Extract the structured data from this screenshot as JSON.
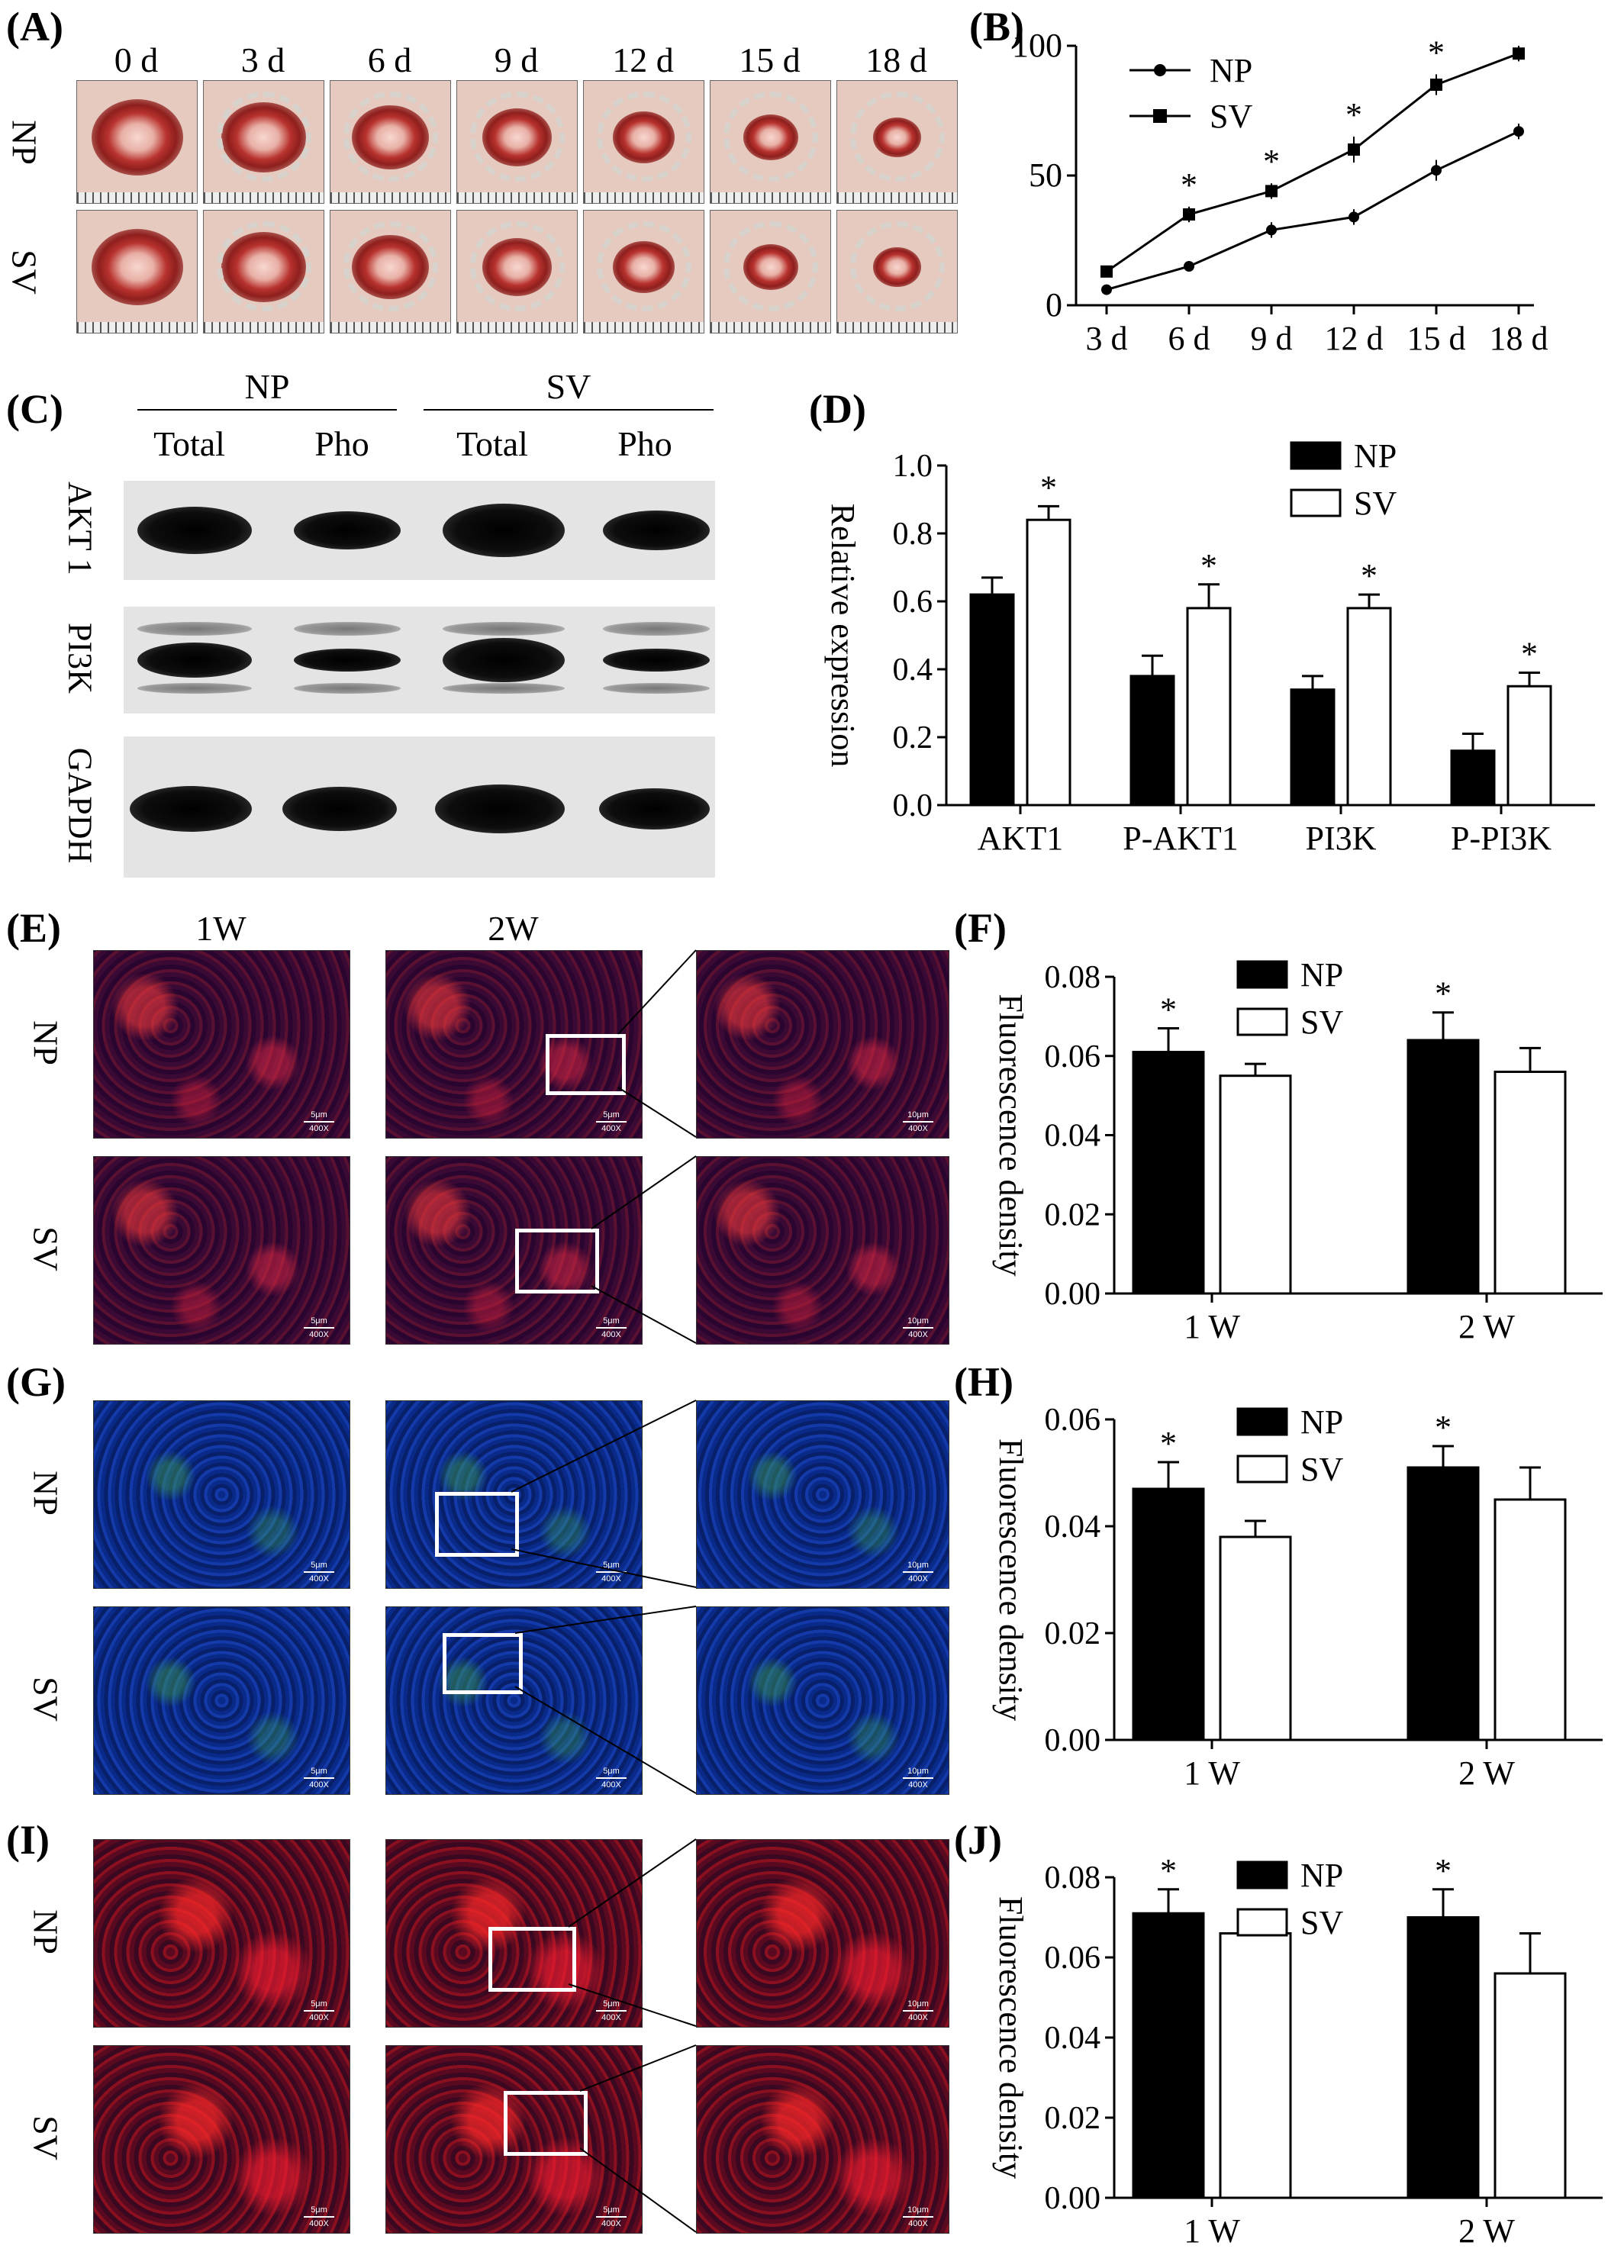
{
  "panels": {
    "A": {
      "label": "(A)",
      "days": [
        "0 d",
        "3 d",
        "6 d",
        "9 d",
        "12 d",
        "15 d",
        "18 d"
      ],
      "rows": [
        "NP",
        "SV"
      ]
    },
    "B": {
      "label": "(B)"
    },
    "C": {
      "label": "(C)",
      "groups": [
        "NP",
        "SV"
      ],
      "lanes": [
        "Total",
        "Pho",
        "Total",
        "Pho"
      ],
      "proteins": [
        "AKT 1",
        "PI3K",
        "GAPDH"
      ]
    },
    "D": {
      "label": "(D)"
    },
    "E": {
      "label": "(E)",
      "cols": [
        "1W",
        "2W"
      ],
      "rows": [
        "NP",
        "SV"
      ]
    },
    "F": {
      "label": "(F)"
    },
    "G": {
      "label": "(G)",
      "rows": [
        "NP",
        "SV"
      ]
    },
    "H": {
      "label": "(H)"
    },
    "I": {
      "label": "(I)",
      "rows": [
        "NP",
        "SV"
      ]
    },
    "J": {
      "label": "(J)"
    }
  },
  "micro_scale": {
    "low": "5μm",
    "high": "10μm",
    "mag": "400X"
  },
  "chart_data": [
    {
      "id": "B",
      "type": "line",
      "x": [
        "3 d",
        "6 d",
        "9 d",
        "12 d",
        "15 d",
        "18 d"
      ],
      "ylim": [
        0,
        100
      ],
      "yticks": [
        0,
        50,
        100
      ],
      "series": [
        {
          "name": "NP",
          "marker": "circle",
          "values": [
            6,
            15,
            29,
            34,
            52,
            67
          ],
          "err": [
            1,
            2,
            3,
            3,
            4,
            3
          ]
        },
        {
          "name": "SV",
          "marker": "square",
          "values": [
            13,
            35,
            44,
            60,
            85,
            97
          ],
          "err": [
            2,
            3,
            3,
            5,
            4,
            3
          ]
        }
      ],
      "sig": [
        "",
        "*",
        "*",
        "*",
        "*",
        "*"
      ]
    },
    {
      "id": "D",
      "type": "bar",
      "categories": [
        "AKT1",
        "P-AKT1",
        "PI3K",
        "P-PI3K"
      ],
      "ylabel": "Relative expression",
      "ylim": [
        0,
        1.0
      ],
      "yticks": [
        "0.0",
        "0.2",
        "0.4",
        "0.6",
        "0.8",
        "1.0"
      ],
      "series": [
        {
          "name": "NP",
          "fill": "#000000",
          "values": [
            0.62,
            0.38,
            0.34,
            0.16
          ],
          "err": [
            0.05,
            0.06,
            0.04,
            0.05
          ]
        },
        {
          "name": "SV",
          "fill": "#ffffff",
          "values": [
            0.84,
            0.58,
            0.58,
            0.35
          ],
          "err": [
            0.04,
            0.07,
            0.04,
            0.04
          ]
        }
      ],
      "sig_series": "SV"
    },
    {
      "id": "F",
      "type": "bar",
      "categories": [
        "1 W",
        "2 W"
      ],
      "ylabel": "Fluorescence density",
      "ylim": [
        0,
        0.08
      ],
      "yticks": [
        "0.00",
        "0.02",
        "0.04",
        "0.06",
        "0.08"
      ],
      "series": [
        {
          "name": "NP",
          "fill": "#000000",
          "values": [
            0.061,
            0.064
          ],
          "err": [
            0.006,
            0.007
          ]
        },
        {
          "name": "SV",
          "fill": "#ffffff",
          "values": [
            0.055,
            0.056
          ],
          "err": [
            0.003,
            0.006
          ]
        }
      ],
      "sig_series": "NP"
    },
    {
      "id": "H",
      "type": "bar",
      "categories": [
        "1 W",
        "2 W"
      ],
      "ylabel": "Fluorescence density",
      "ylim": [
        0,
        0.06
      ],
      "yticks": [
        "0.00",
        "0.02",
        "0.04",
        "0.06"
      ],
      "series": [
        {
          "name": "NP",
          "fill": "#000000",
          "values": [
            0.047,
            0.051
          ],
          "err": [
            0.005,
            0.004
          ]
        },
        {
          "name": "SV",
          "fill": "#ffffff",
          "values": [
            0.038,
            0.045
          ],
          "err": [
            0.003,
            0.006
          ]
        }
      ],
      "sig_series": "NP"
    },
    {
      "id": "J",
      "type": "bar",
      "categories": [
        "1 W",
        "2 W"
      ],
      "ylabel": "Fluorescence density",
      "ylim": [
        0,
        0.08
      ],
      "yticks": [
        "0.00",
        "0.02",
        "0.04",
        "0.06",
        "0.08"
      ],
      "series": [
        {
          "name": "NP",
          "fill": "#000000",
          "values": [
            0.071,
            0.07
          ],
          "err": [
            0.006,
            0.007
          ]
        },
        {
          "name": "SV",
          "fill": "#ffffff",
          "values": [
            0.066,
            0.056
          ],
          "err": [
            0.004,
            0.01
          ]
        }
      ],
      "sig_series": "NP"
    }
  ]
}
